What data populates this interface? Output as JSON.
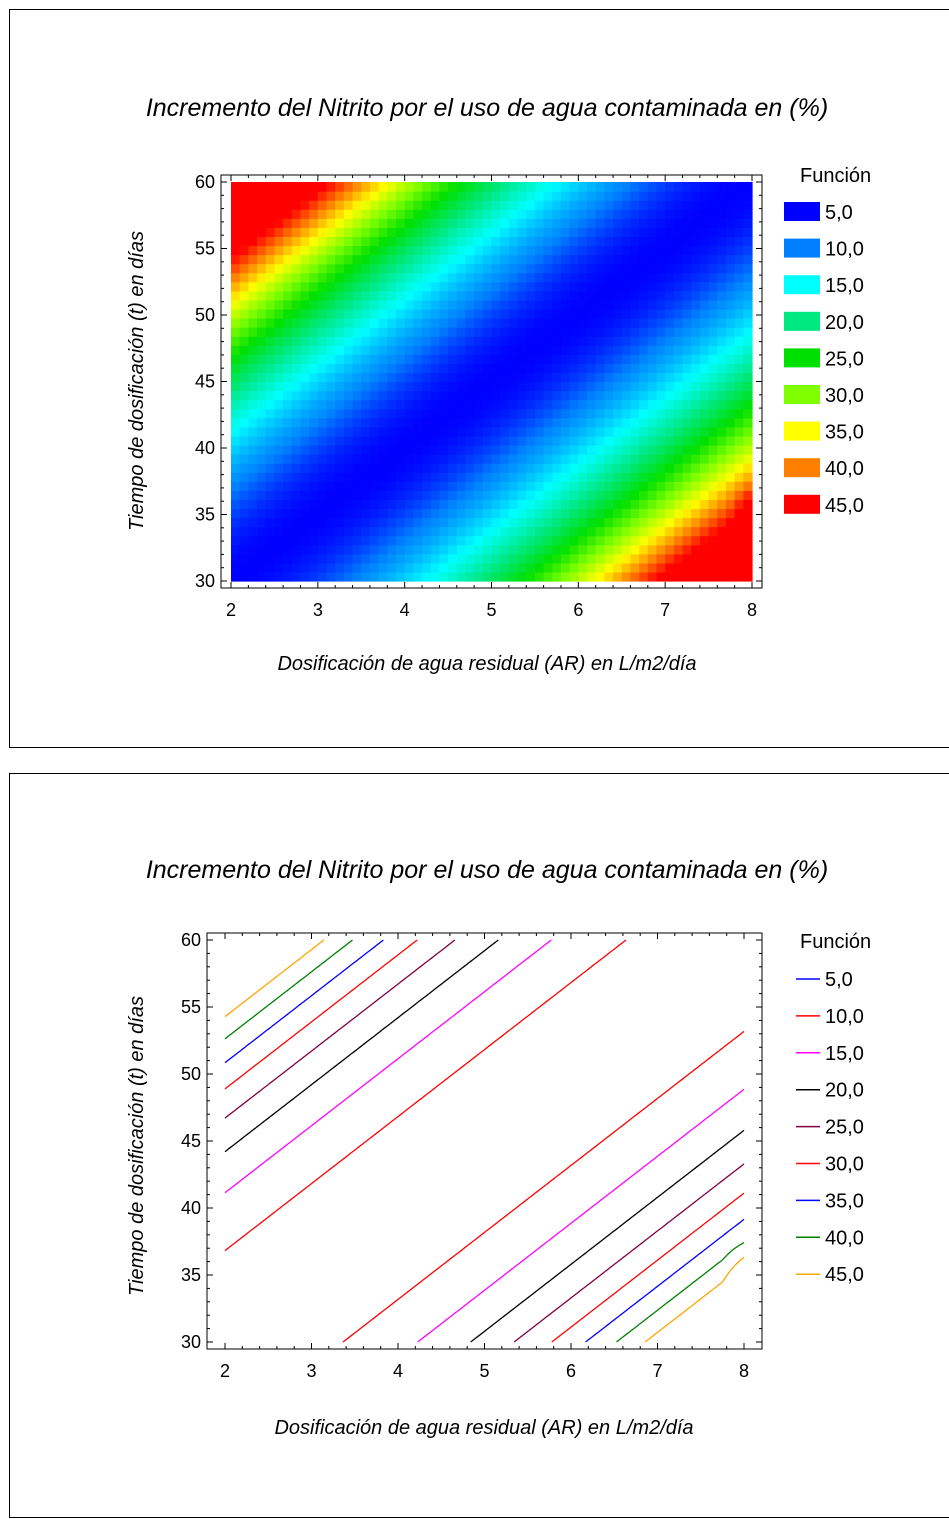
{
  "chart_data": [
    {
      "type": "heatmap",
      "title": "Incremento del Nitrito por el uso de agua contaminada en (%)",
      "xlabel": "Dosificación de agua residual (AR) en L/m2/día",
      "ylabel": "Tiempo de dosificación (t) en días",
      "xlim": [
        2,
        8
      ],
      "ylim": [
        30,
        60
      ],
      "xticks": [
        "2",
        "3",
        "4",
        "5",
        "6",
        "7",
        "8"
      ],
      "yticks": [
        "30",
        "35",
        "40",
        "45",
        "50",
        "55",
        "60"
      ],
      "legend_title": "Función",
      "legend_position": "right",
      "levels": [
        "5,0",
        "10,0",
        "15,0",
        "20,0",
        "25,0",
        "30,0",
        "35,0",
        "40,0",
        "45,0"
      ],
      "level_values": [
        5,
        10,
        15,
        20,
        25,
        30,
        35,
        40,
        45
      ],
      "colors": [
        "#0000ff",
        "#0080ff",
        "#00ffff",
        "#00e880",
        "#00e000",
        "#80ff00",
        "#ffff00",
        "#ff8000",
        "#ff0000"
      ]
    },
    {
      "type": "contour",
      "title": "Incremento del Nitrito por el uso de agua contaminada en (%)",
      "xlabel": "Dosificación de agua residual (AR) en L/m2/día",
      "ylabel": "Tiempo de dosificación (t) en días",
      "xlim": [
        2,
        8
      ],
      "ylim": [
        30,
        60
      ],
      "xticks": [
        "2",
        "3",
        "4",
        "5",
        "6",
        "7",
        "8"
      ],
      "yticks": [
        "30",
        "35",
        "40",
        "45",
        "50",
        "55",
        "60"
      ],
      "legend_title": "Función",
      "legend_position": "right",
      "levels": [
        "5,0",
        "10,0",
        "15,0",
        "20,0",
        "25,0",
        "30,0",
        "35,0",
        "40,0",
        "45,0"
      ],
      "level_values": [
        5,
        10,
        15,
        20,
        25,
        30,
        35,
        40,
        45
      ],
      "colors": [
        "#0000ff",
        "#ff0000",
        "#ff00ff",
        "#000000",
        "#800040",
        "#ff0000",
        "#0000ff",
        "#008000",
        "#ffa500"
      ]
    }
  ]
}
